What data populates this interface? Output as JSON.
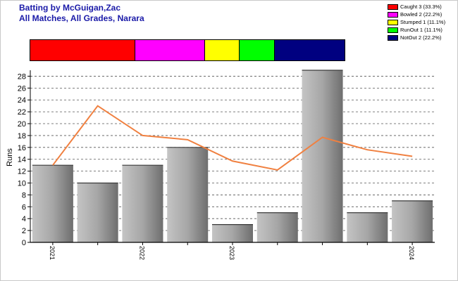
{
  "header": {
    "title_line1": "Batting by McGuigan,Zac",
    "title_line2": "All Matches, All Grades, Narara"
  },
  "legend": [
    {
      "label": "Caught 3 (33.3%)",
      "color": "#ff0000",
      "count": 3
    },
    {
      "label": "Bowled 2 (22.2%)",
      "color": "#ff00ff",
      "count": 2
    },
    {
      "label": "Stumped 1 (11.1%)",
      "color": "#ffff00",
      "count": 1
    },
    {
      "label": "RunOut 1 (11.1%)",
      "color": "#00ff00",
      "count": 1
    },
    {
      "label": "NotOut 2 (22.2%)",
      "color": "#000080",
      "count": 2
    }
  ],
  "chart_data": {
    "type": "bar",
    "ylabel": "Runs",
    "ylim": [
      0,
      29
    ],
    "yticks": [
      0,
      2,
      4,
      6,
      8,
      10,
      12,
      14,
      16,
      18,
      20,
      22,
      24,
      26,
      28
    ],
    "grid": true,
    "x_tick_labels": [
      {
        "label": "2021",
        "index": 0
      },
      {
        "label": "2022",
        "index": 2
      },
      {
        "label": "2023",
        "index": 4
      },
      {
        "label": "2024",
        "index": 8
      }
    ],
    "series": [
      {
        "type": "bar",
        "values": [
          13,
          10,
          13,
          16,
          3,
          5,
          29,
          5,
          7
        ]
      },
      {
        "type": "line",
        "color": "#f08040",
        "values": [
          13,
          23,
          18,
          17.3,
          13.7,
          12.2,
          17.7,
          15.6,
          14.5
        ]
      }
    ]
  }
}
